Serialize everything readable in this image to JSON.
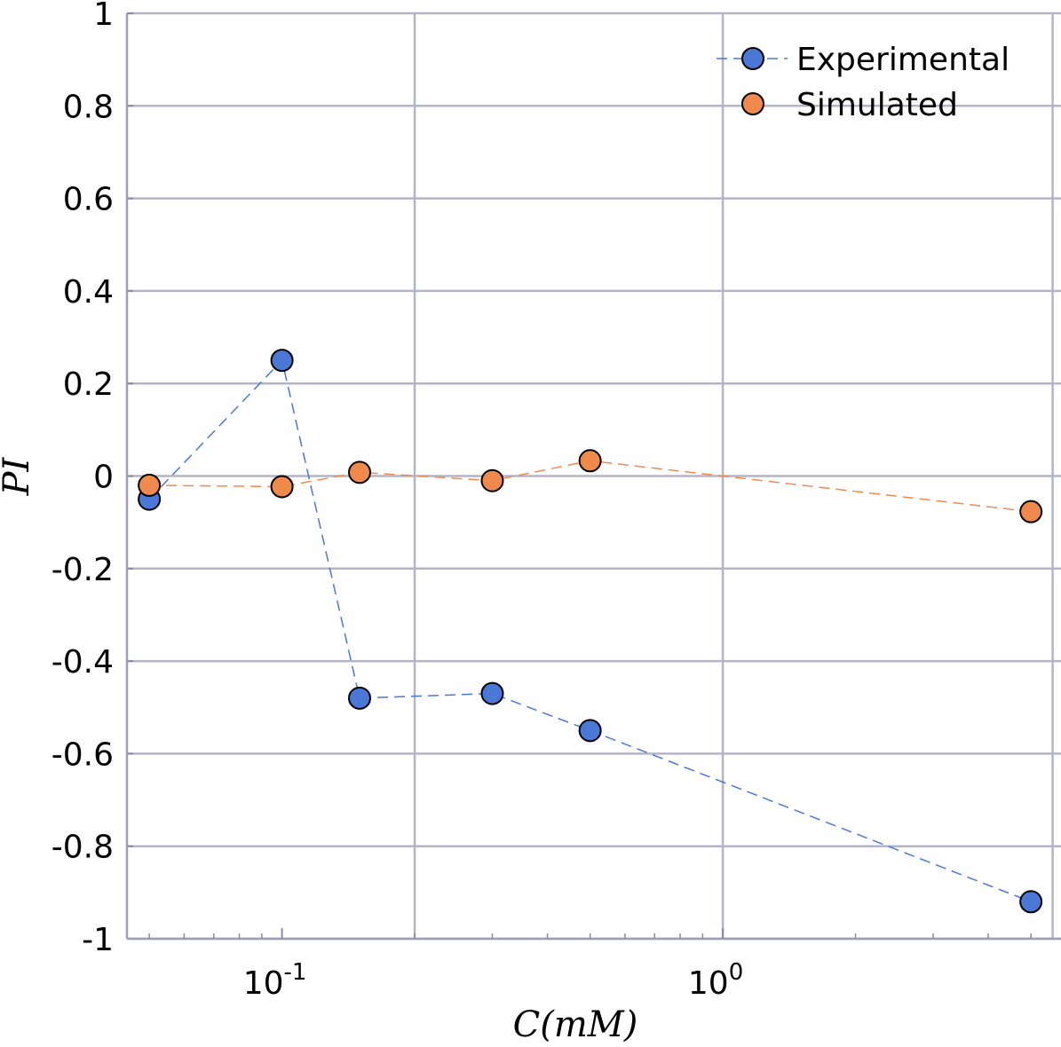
{
  "chart_data": {
    "type": "scatter",
    "title": "",
    "xlabel": "C(mM)",
    "ylabel": "PI",
    "xscale": "log",
    "xlim": [
      0.0445,
      5.85
    ],
    "ylim": [
      -1,
      1
    ],
    "x_major_ticks": [
      {
        "value": 0.1,
        "base": "10",
        "exp": "-1"
      },
      {
        "value": 1,
        "base": "10",
        "exp": "0"
      }
    ],
    "y_ticks": [
      {
        "value": 1,
        "label": "1"
      },
      {
        "value": 0.8,
        "label": "0.8"
      },
      {
        "value": 0.6,
        "label": "0.6"
      },
      {
        "value": 0.4,
        "label": "0.4"
      },
      {
        "value": 0.2,
        "label": "0.2"
      },
      {
        "value": 0,
        "label": "0"
      },
      {
        "value": -0.2,
        "label": "-0.2"
      },
      {
        "value": -0.4,
        "label": "-0.4"
      },
      {
        "value": -0.6,
        "label": "-0.6"
      },
      {
        "value": -0.8,
        "label": "-0.8"
      },
      {
        "value": -1,
        "label": "-1"
      }
    ],
    "x_grid_values": [
      0.2,
      1,
      5.6
    ],
    "grid": true,
    "legend_position": "top-right",
    "series": [
      {
        "name": "Experimental",
        "color": "#4a78d6",
        "line_style": "dashed",
        "x": [
          0.05,
          0.1,
          0.15,
          0.3,
          0.5,
          5
        ],
        "y": [
          -0.05,
          0.25,
          -0.48,
          -0.47,
          -0.55,
          -0.92
        ]
      },
      {
        "name": "Simulated",
        "color": "#ef8a4c",
        "line_style": "dashed",
        "x": [
          0.05,
          0.1,
          0.15,
          0.3,
          0.5,
          5
        ],
        "y": [
          -0.02,
          -0.023,
          0.008,
          -0.01,
          0.033,
          -0.077
        ]
      }
    ]
  }
}
